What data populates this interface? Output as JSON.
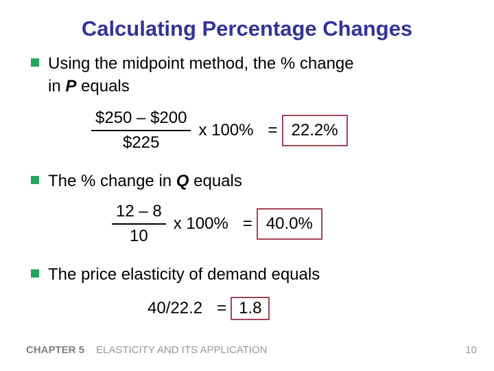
{
  "slide": {
    "title": "Calculating Percentage Changes",
    "bullets": [
      {
        "line1": "Using the midpoint method, the % change",
        "line2_prefix": "in ",
        "variable": "P",
        "line2_suffix": " equals"
      },
      {
        "prefix": "The % change in ",
        "variable": "Q",
        "suffix": " equals"
      },
      {
        "text": "The price elasticity of demand equals"
      }
    ],
    "formulas": [
      {
        "numerator": "$250 – $200",
        "denominator": "$225",
        "multiplier": "x 100%",
        "equals": "=",
        "result": "22.2%"
      },
      {
        "numerator": "12 – 8",
        "denominator": "10",
        "multiplier": "x 100%",
        "equals": "=",
        "result": "40.0%"
      },
      {
        "expression": "40/22.2",
        "equals": "=",
        "result": "1.8"
      }
    ],
    "footer": {
      "chapter": "CHAPTER 5",
      "book_title": "ELASTICITY AND ITS APPLICATION",
      "page_number": "10"
    },
    "colors": {
      "background": "#FFFFFF",
      "title_text": "#333399",
      "body_text": "#000000",
      "bullet_square": "#21A45D",
      "result_box_border": "#A04455",
      "footer_chapter_text": "#7F7F7F",
      "footer_text": "#979797"
    }
  }
}
